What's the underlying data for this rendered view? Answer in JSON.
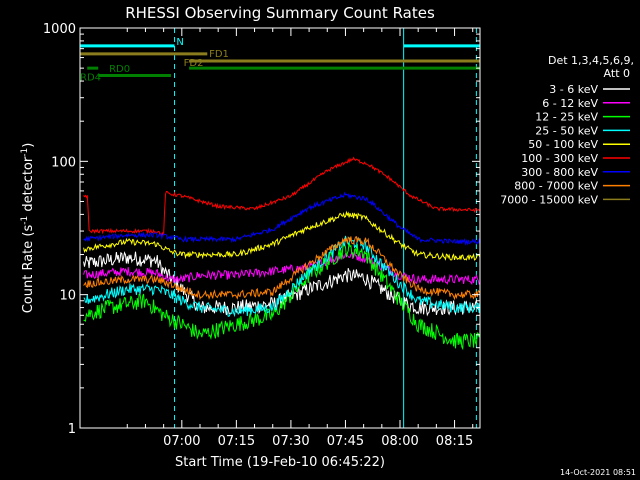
{
  "chart_data": {
    "type": "line",
    "title": "RHESSI Observing Summary Count Rates",
    "xlabel": "Start Time (19-Feb-10 06:45:22)",
    "ylabel_main": "Count Rate (s",
    "ylabel_sup1": "-1",
    "ylabel_mid": " detector",
    "ylabel_sup2": "-1",
    "ylabel_end": ")",
    "yscale": "log",
    "ylim": [
      1,
      1000
    ],
    "xlim_minutes": [
      -13,
      97
    ],
    "x_ticks": [
      {
        "m": 15,
        "label": "07:00"
      },
      {
        "m": 30,
        "label": "07:15"
      },
      {
        "m": 45,
        "label": "07:30"
      },
      {
        "m": 60,
        "label": "07:45"
      },
      {
        "m": 75,
        "label": "08:00"
      },
      {
        "m": 90,
        "label": "08:15"
      }
    ],
    "y_ticks": [
      {
        "v": 1,
        "label": "1"
      },
      {
        "v": 10,
        "label": "10"
      },
      {
        "v": 100,
        "label": "100"
      },
      {
        "v": 1000,
        "label": "1000"
      }
    ],
    "legend_header_1": "Det 1,3,4,5,6,9,",
    "legend_header_2": "Att 0",
    "legend_placement": "right",
    "footer_date": "14-Oct-2021 08:51",
    "series": [
      {
        "name": "3 - 6 keV",
        "color": "#ffffff",
        "keys": [
          [
            -12,
            17
          ],
          [
            0,
            19
          ],
          [
            8,
            18
          ],
          [
            10,
            15
          ],
          [
            15,
            11
          ],
          [
            20,
            8
          ],
          [
            30,
            8
          ],
          [
            40,
            8.5
          ],
          [
            50,
            11
          ],
          [
            60,
            14
          ],
          [
            65,
            13.5
          ],
          [
            75,
            9
          ],
          [
            80,
            8
          ],
          [
            90,
            8
          ],
          [
            97,
            8
          ]
        ],
        "noise": 0.13
      },
      {
        "name": "6 - 12 keV",
        "color": "#ff00ff",
        "keys": [
          [
            -12,
            14
          ],
          [
            0,
            15
          ],
          [
            8,
            14.5
          ],
          [
            12,
            13
          ],
          [
            15,
            13
          ],
          [
            20,
            14
          ],
          [
            30,
            14
          ],
          [
            40,
            15
          ],
          [
            50,
            16
          ],
          [
            60,
            20
          ],
          [
            65,
            19
          ],
          [
            75,
            14
          ],
          [
            80,
            13
          ],
          [
            90,
            13
          ],
          [
            97,
            13
          ]
        ],
        "noise": 0.08
      },
      {
        "name": "12 - 25 keV",
        "color": "#00ff00",
        "keys": [
          [
            -12,
            7
          ],
          [
            -5,
            8
          ],
          [
            5,
            9
          ],
          [
            10,
            7
          ],
          [
            15,
            6
          ],
          [
            20,
            5
          ],
          [
            30,
            6
          ],
          [
            40,
            7
          ],
          [
            50,
            14
          ],
          [
            60,
            22
          ],
          [
            65,
            21
          ],
          [
            75,
            9
          ],
          [
            80,
            6
          ],
          [
            90,
            4.5
          ],
          [
            97,
            4.5
          ]
        ],
        "noise": 0.14
      },
      {
        "name": "25 - 50 keV",
        "color": "#00ffff",
        "keys": [
          [
            -12,
            9
          ],
          [
            0,
            11
          ],
          [
            8,
            11
          ],
          [
            12,
            10
          ],
          [
            15,
            9
          ],
          [
            20,
            8
          ],
          [
            30,
            7.5
          ],
          [
            40,
            8
          ],
          [
            50,
            15
          ],
          [
            60,
            25
          ],
          [
            65,
            24
          ],
          [
            75,
            12
          ],
          [
            80,
            9
          ],
          [
            90,
            8
          ],
          [
            97,
            8
          ]
        ],
        "noise": 0.1
      },
      {
        "name": "50 - 100 keV",
        "color": "#ffff00",
        "keys": [
          [
            -12,
            22
          ],
          [
            0,
            25
          ],
          [
            8,
            24
          ],
          [
            12,
            21
          ],
          [
            15,
            20
          ],
          [
            20,
            20
          ],
          [
            30,
            20
          ],
          [
            40,
            24
          ],
          [
            50,
            32
          ],
          [
            60,
            40
          ],
          [
            65,
            38
          ],
          [
            75,
            24
          ],
          [
            80,
            20
          ],
          [
            90,
            19
          ],
          [
            97,
            19
          ]
        ],
        "noise": 0.05
      },
      {
        "name": "100 - 300 keV",
        "color": "#ff0000",
        "keys": [
          [
            -12,
            55
          ],
          [
            -11,
            55
          ],
          [
            -10.5,
            30
          ],
          [
            0,
            30
          ],
          [
            8,
            30
          ],
          [
            10,
            28
          ],
          [
            10.5,
            58
          ],
          [
            15,
            55
          ],
          [
            25,
            46
          ],
          [
            35,
            44
          ],
          [
            45,
            55
          ],
          [
            55,
            85
          ],
          [
            62,
            104
          ],
          [
            66,
            96
          ],
          [
            72,
            75
          ],
          [
            78,
            55
          ],
          [
            85,
            44
          ],
          [
            97,
            43
          ]
        ],
        "noise": 0.03
      },
      {
        "name": "300 - 800 keV",
        "color": "#0000ff",
        "keys": [
          [
            -12,
            26
          ],
          [
            0,
            28
          ],
          [
            8,
            28
          ],
          [
            12,
            27
          ],
          [
            15,
            26
          ],
          [
            20,
            26
          ],
          [
            30,
            26
          ],
          [
            40,
            31
          ],
          [
            50,
            45
          ],
          [
            60,
            56
          ],
          [
            66,
            52
          ],
          [
            75,
            32
          ],
          [
            80,
            26
          ],
          [
            90,
            25
          ],
          [
            97,
            25
          ]
        ],
        "noise": 0.04
      },
      {
        "name": "800 - 7000 keV",
        "color": "#ff8000",
        "keys": [
          [
            -12,
            12
          ],
          [
            0,
            13
          ],
          [
            8,
            13
          ],
          [
            12,
            12
          ],
          [
            15,
            11
          ],
          [
            20,
            10
          ],
          [
            30,
            10
          ],
          [
            40,
            10.5
          ],
          [
            50,
            17
          ],
          [
            60,
            26
          ],
          [
            66,
            25
          ],
          [
            75,
            14
          ],
          [
            80,
            11
          ],
          [
            90,
            10
          ],
          [
            97,
            10
          ]
        ],
        "noise": 0.07
      },
      {
        "name": "7000 - 15000 keV",
        "color": "#8b7d1e",
        "keys": [],
        "noise": 0
      }
    ],
    "flag_bars": [
      {
        "label": "N",
        "color": "#00ffff",
        "segments": [
          [
            -13,
            13
          ],
          [
            76,
            97
          ]
        ],
        "level": 735
      },
      {
        "label": "FD1",
        "color": "#8b7d1e",
        "segments": [
          [
            -13,
            22
          ]
        ],
        "level": 640
      },
      {
        "label": "FD2",
        "color": "#8b7d1e",
        "segments": [
          [
            17,
            97
          ]
        ],
        "level": 565
      },
      {
        "label": "RD0",
        "color": "#008000",
        "segments": [
          [
            -11,
            -8
          ],
          [
            17,
            97
          ]
        ],
        "level": 500
      },
      {
        "label": "RD4",
        "color": "#008000",
        "segments": [
          [
            -8,
            12
          ]
        ],
        "level": 440
      }
    ],
    "dashed_lines_minutes": [
      13,
      96
    ],
    "solid_lines_minutes": [
      -13,
      76
    ],
    "dashed_color": "#00ffff"
  }
}
